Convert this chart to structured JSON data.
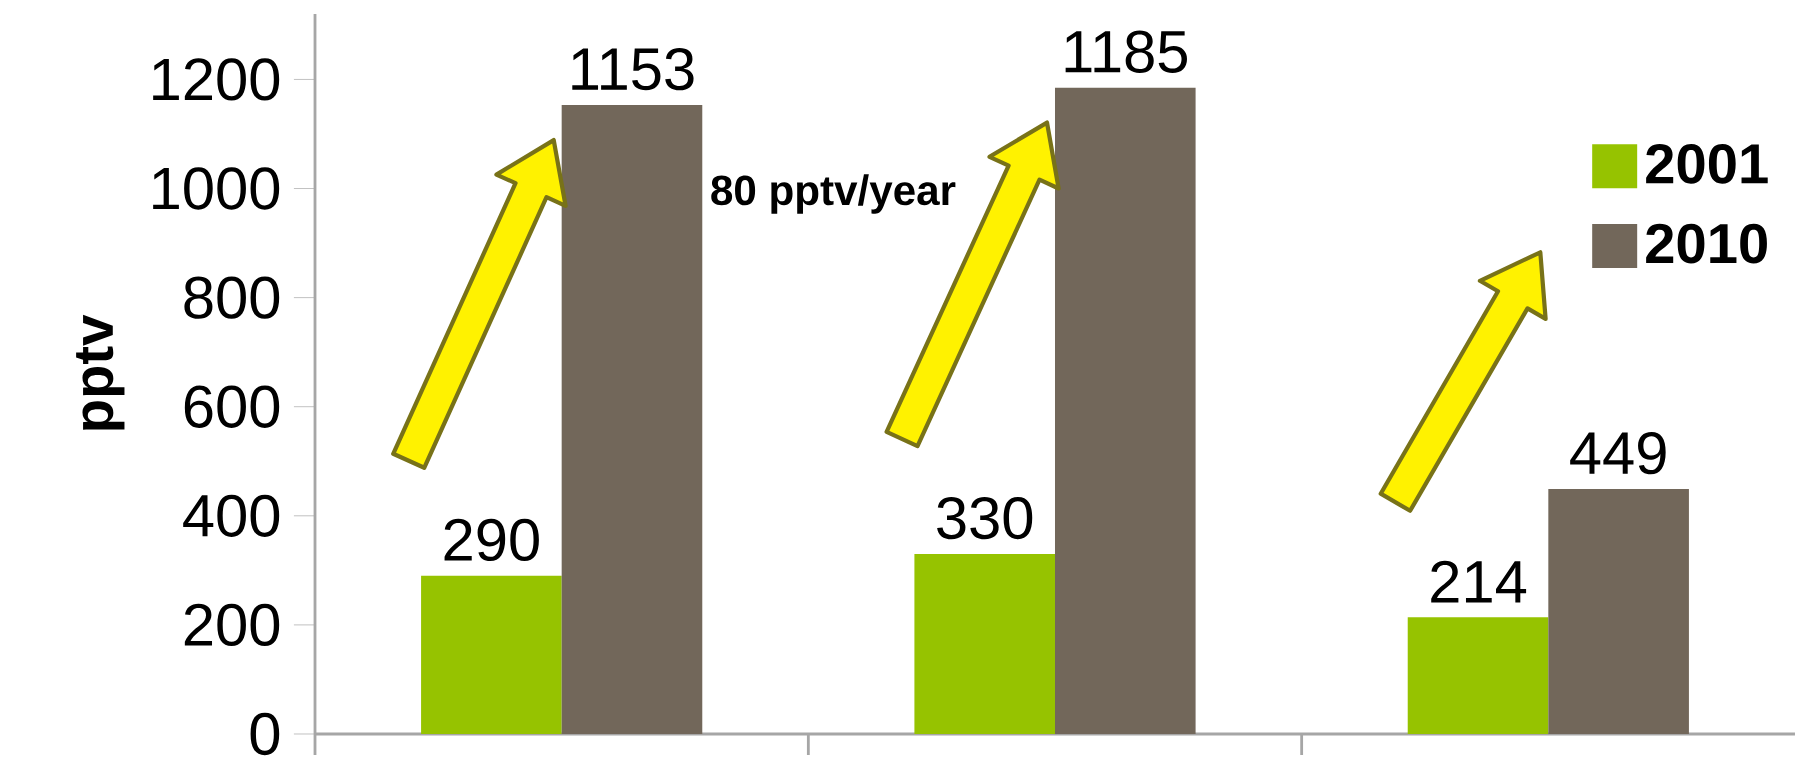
{
  "chart_data": {
    "type": "bar",
    "ylabel": "pptv",
    "categories": [
      null,
      null,
      null
    ],
    "series": [
      {
        "name": "2001",
        "color": "#96c300",
        "values": [
          290,
          330,
          214
        ]
      },
      {
        "name": "2010",
        "color": "#72675a",
        "values": [
          1153,
          1185,
          449
        ]
      }
    ],
    "ylim": [
      0,
      1320
    ],
    "yticks": [
      0,
      200,
      400,
      600,
      800,
      1000,
      1200
    ],
    "data_labels": true,
    "legend": "right",
    "grid": false,
    "tick_labels": "y",
    "annotations": [
      "80 pptv/year"
    ]
  }
}
